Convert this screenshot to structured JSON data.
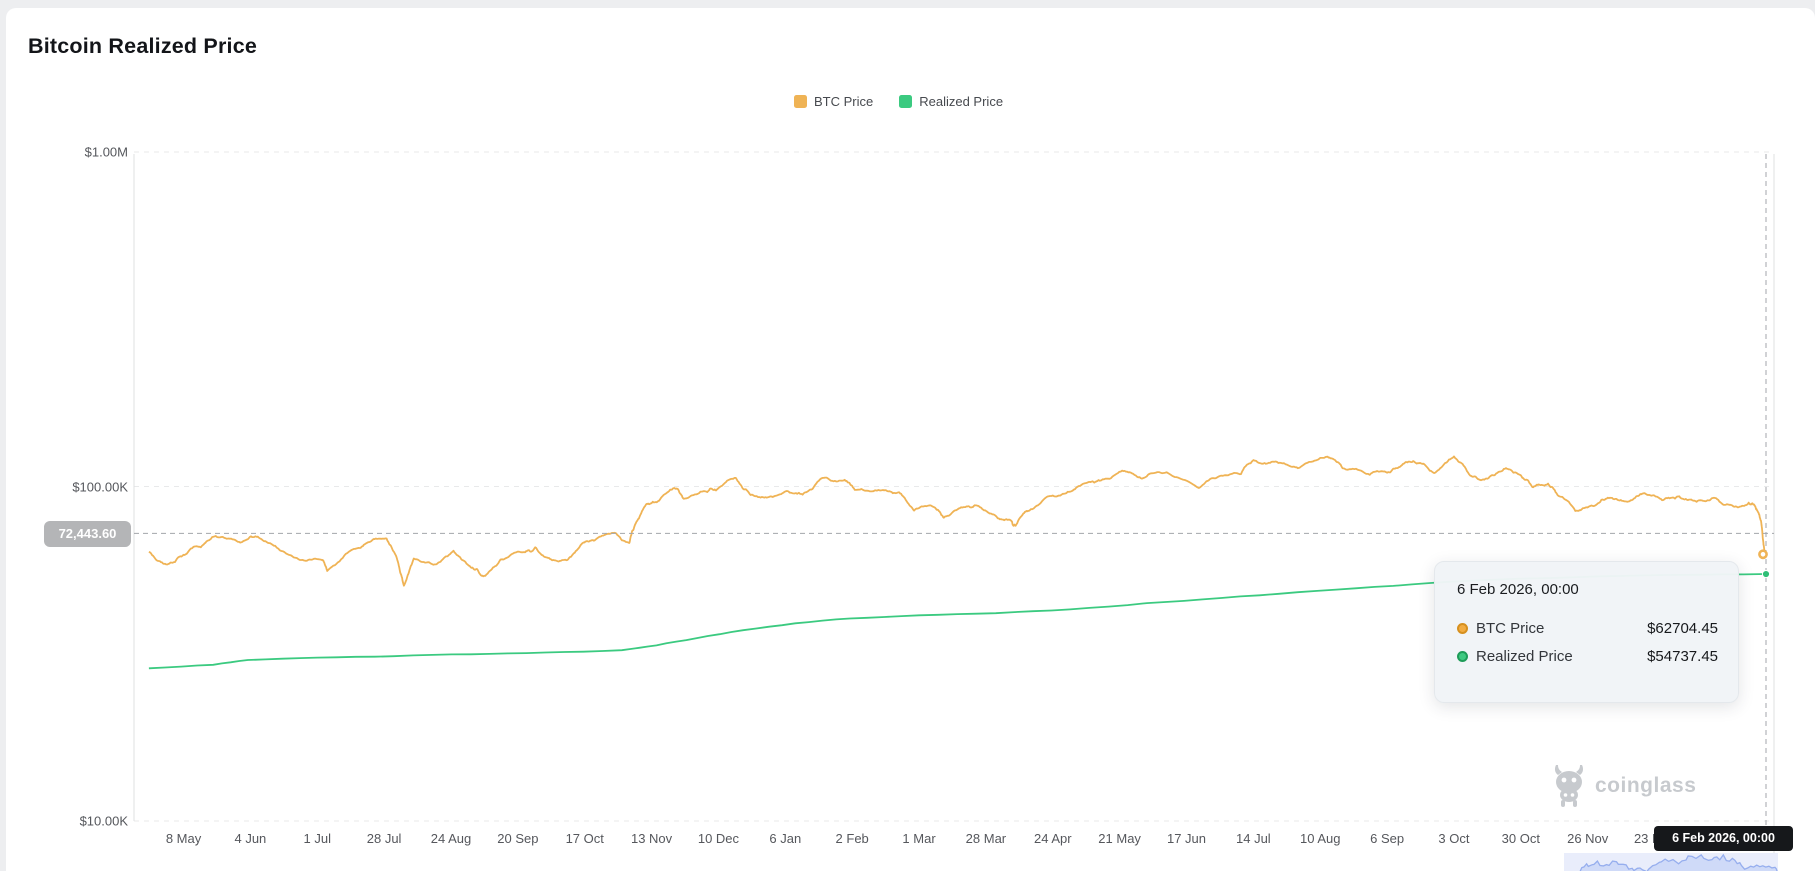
{
  "page": {
    "title": "Bitcoin Realized Price"
  },
  "legend": [
    {
      "label": "BTC Price",
      "color": "#EFB355"
    },
    {
      "label": "Realized Price",
      "color": "#3BCA80"
    }
  ],
  "crosshair": {
    "y_badge": "72,443.60",
    "y_value": 72443.6,
    "x_badge": "6 Feb 2026, 00:00"
  },
  "tooltip": {
    "title": "6 Feb 2026, 00:00",
    "rows": [
      {
        "label": "BTC Price",
        "value": "$62704.45",
        "color": "#F2AC42",
        "ring": "#D6901F"
      },
      {
        "label": "Realized Price",
        "value": "$54737.45",
        "color": "#3EC981",
        "ring": "#1E9C59"
      }
    ]
  },
  "watermark": {
    "label": "coinglass"
  },
  "chart_data": {
    "type": "line",
    "title": "Bitcoin Realized Price",
    "yscale": "log",
    "ylim": [
      10000,
      1000000
    ],
    "grid": "horizontal-dashed",
    "legend_position": "top-center",
    "y_ticks": [
      {
        "value": 1000000,
        "label": "$1.00M"
      },
      {
        "value": 100000,
        "label": "$100.00K"
      },
      {
        "value": 10000,
        "label": "$10.00K"
      }
    ],
    "x_range": [
      "2024-04-18",
      "2026-02-06"
    ],
    "x_ticks": [
      {
        "date": "2024-05-08",
        "label": "8 May"
      },
      {
        "date": "2024-06-04",
        "label": "4 Jun"
      },
      {
        "date": "2024-07-01",
        "label": "1 Jul"
      },
      {
        "date": "2024-07-28",
        "label": "28 Jul"
      },
      {
        "date": "2024-08-24",
        "label": "24 Aug"
      },
      {
        "date": "2024-09-20",
        "label": "20 Sep"
      },
      {
        "date": "2024-10-17",
        "label": "17 Oct"
      },
      {
        "date": "2024-11-13",
        "label": "13 Nov"
      },
      {
        "date": "2024-12-10",
        "label": "10 Dec"
      },
      {
        "date": "2025-01-06",
        "label": "6 Jan"
      },
      {
        "date": "2025-02-02",
        "label": "2 Feb"
      },
      {
        "date": "2025-03-01",
        "label": "1 Mar"
      },
      {
        "date": "2025-03-28",
        "label": "28 Mar"
      },
      {
        "date": "2025-04-24",
        "label": "24 Apr"
      },
      {
        "date": "2025-05-21",
        "label": "21 May"
      },
      {
        "date": "2025-06-17",
        "label": "17 Jun"
      },
      {
        "date": "2025-07-14",
        "label": "14 Jul"
      },
      {
        "date": "2025-08-10",
        "label": "10 Aug"
      },
      {
        "date": "2025-09-06",
        "label": "6 Sep"
      },
      {
        "date": "2025-10-03",
        "label": "3 Oct"
      },
      {
        "date": "2025-10-30",
        "label": "30 Oct"
      },
      {
        "date": "2025-11-26",
        "label": "26 Nov"
      },
      {
        "date": "2025-12-23",
        "label": "23 Dec"
      }
    ],
    "series": [
      {
        "name": "BTC Price",
        "color": "#EFB355",
        "points": [
          [
            "2024-04-24",
            63800
          ],
          [
            "2024-05-01",
            58500
          ],
          [
            "2024-05-08",
            62500
          ],
          [
            "2024-05-15",
            65800
          ],
          [
            "2024-05-21",
            71100
          ],
          [
            "2024-05-30",
            68300
          ],
          [
            "2024-06-06",
            71000
          ],
          [
            "2024-06-14",
            66500
          ],
          [
            "2024-06-24",
            60300
          ],
          [
            "2024-07-03",
            60200
          ],
          [
            "2024-07-05",
            55900
          ],
          [
            "2024-07-15",
            64700
          ],
          [
            "2024-07-22",
            68200
          ],
          [
            "2024-07-29",
            69900
          ],
          [
            "2024-08-02",
            61500
          ],
          [
            "2024-08-05",
            50500
          ],
          [
            "2024-08-09",
            60900
          ],
          [
            "2024-08-18",
            58500
          ],
          [
            "2024-08-25",
            64300
          ],
          [
            "2024-09-01",
            57300
          ],
          [
            "2024-09-06",
            53900
          ],
          [
            "2024-09-13",
            60500
          ],
          [
            "2024-09-23",
            63600
          ],
          [
            "2024-09-27",
            65800
          ],
          [
            "2024-10-03",
            60700
          ],
          [
            "2024-10-10",
            60300
          ],
          [
            "2024-10-16",
            67600
          ],
          [
            "2024-10-21",
            69000
          ],
          [
            "2024-10-29",
            72700
          ],
          [
            "2024-11-04",
            67800
          ],
          [
            "2024-11-06",
            75600
          ],
          [
            "2024-11-11",
            88700
          ],
          [
            "2024-11-16",
            90600
          ],
          [
            "2024-11-22",
            98900
          ],
          [
            "2024-11-26",
            91900
          ],
          [
            "2024-12-05",
            96600
          ],
          [
            "2024-12-09",
            97300
          ],
          [
            "2024-12-17",
            106100
          ],
          [
            "2024-12-23",
            94300
          ],
          [
            "2024-12-31",
            93400
          ],
          [
            "2025-01-07",
            96900
          ],
          [
            "2025-01-13",
            94500
          ],
          [
            "2025-01-21",
            106100
          ],
          [
            "2025-01-30",
            104700
          ],
          [
            "2025-02-03",
            97700
          ],
          [
            "2025-02-14",
            97500
          ],
          [
            "2025-02-21",
            96100
          ],
          [
            "2025-02-27",
            84700
          ],
          [
            "2025-03-07",
            86800
          ],
          [
            "2025-03-11",
            80700
          ],
          [
            "2025-03-19",
            86800
          ],
          [
            "2025-03-25",
            87500
          ],
          [
            "2025-03-31",
            82500
          ],
          [
            "2025-04-07",
            79200
          ],
          [
            "2025-04-09",
            76300
          ],
          [
            "2025-04-14",
            84500
          ],
          [
            "2025-04-23",
            93700
          ],
          [
            "2025-05-01",
            96500
          ],
          [
            "2025-05-09",
            103200
          ],
          [
            "2025-05-13",
            104100
          ],
          [
            "2025-05-22",
            111600
          ],
          [
            "2025-05-30",
            105600
          ],
          [
            "2025-06-09",
            110300
          ],
          [
            "2025-06-22",
            99000
          ],
          [
            "2025-06-30",
            107100
          ],
          [
            "2025-07-09",
            108900
          ],
          [
            "2025-07-14",
            119900
          ],
          [
            "2025-07-23",
            118800
          ],
          [
            "2025-08-01",
            113400
          ],
          [
            "2025-08-13",
            122800
          ],
          [
            "2025-08-19",
            113400
          ],
          [
            "2025-08-30",
            108400
          ],
          [
            "2025-09-07",
            110200
          ],
          [
            "2025-09-12",
            115900
          ],
          [
            "2025-09-18",
            117100
          ],
          [
            "2025-09-25",
            109700
          ],
          [
            "2025-10-03",
            123000
          ],
          [
            "2025-10-10",
            107500
          ],
          [
            "2025-10-17",
            106000
          ],
          [
            "2025-10-24",
            113500
          ],
          [
            "2025-10-30",
            108000
          ],
          [
            "2025-11-04",
            99500
          ],
          [
            "2025-11-10",
            102000
          ],
          [
            "2025-11-14",
            94000
          ],
          [
            "2025-11-21",
            84500
          ],
          [
            "2025-11-28",
            87500
          ],
          [
            "2025-12-05",
            92500
          ],
          [
            "2025-12-12",
            90000
          ],
          [
            "2025-12-19",
            95500
          ],
          [
            "2025-12-26",
            91000
          ],
          [
            "2026-01-02",
            93500
          ],
          [
            "2026-01-09",
            90000
          ],
          [
            "2026-01-16",
            92500
          ],
          [
            "2026-01-23",
            88000
          ],
          [
            "2026-01-30",
            89500
          ],
          [
            "2026-02-02",
            85500
          ],
          [
            "2026-02-04",
            79000
          ],
          [
            "2026-02-05",
            67000
          ],
          [
            "2026-02-06",
            62704.45
          ]
        ],
        "end_value": 62704.45
      },
      {
        "name": "Realized Price",
        "color": "#3BCA80",
        "points": [
          [
            "2024-04-24",
            28600
          ],
          [
            "2024-05-20",
            29300
          ],
          [
            "2024-06-03",
            30300
          ],
          [
            "2024-07-01",
            30800
          ],
          [
            "2024-08-01",
            31100
          ],
          [
            "2024-09-01",
            31500
          ],
          [
            "2024-10-01",
            31900
          ],
          [
            "2024-11-01",
            32400
          ],
          [
            "2024-11-15",
            33500
          ],
          [
            "2024-12-01",
            35200
          ],
          [
            "2024-12-20",
            37200
          ],
          [
            "2025-01-10",
            39000
          ],
          [
            "2025-02-01",
            40300
          ],
          [
            "2025-03-01",
            41200
          ],
          [
            "2025-04-01",
            41800
          ],
          [
            "2025-05-01",
            42900
          ],
          [
            "2025-06-01",
            44800
          ],
          [
            "2025-07-01",
            46400
          ],
          [
            "2025-08-01",
            48300
          ],
          [
            "2025-09-01",
            50100
          ],
          [
            "2025-10-01",
            51900
          ],
          [
            "2025-11-01",
            53100
          ],
          [
            "2025-12-01",
            53900
          ],
          [
            "2026-01-01",
            54400
          ],
          [
            "2026-02-06",
            54737.45
          ]
        ],
        "end_value": 54737.45
      }
    ]
  }
}
